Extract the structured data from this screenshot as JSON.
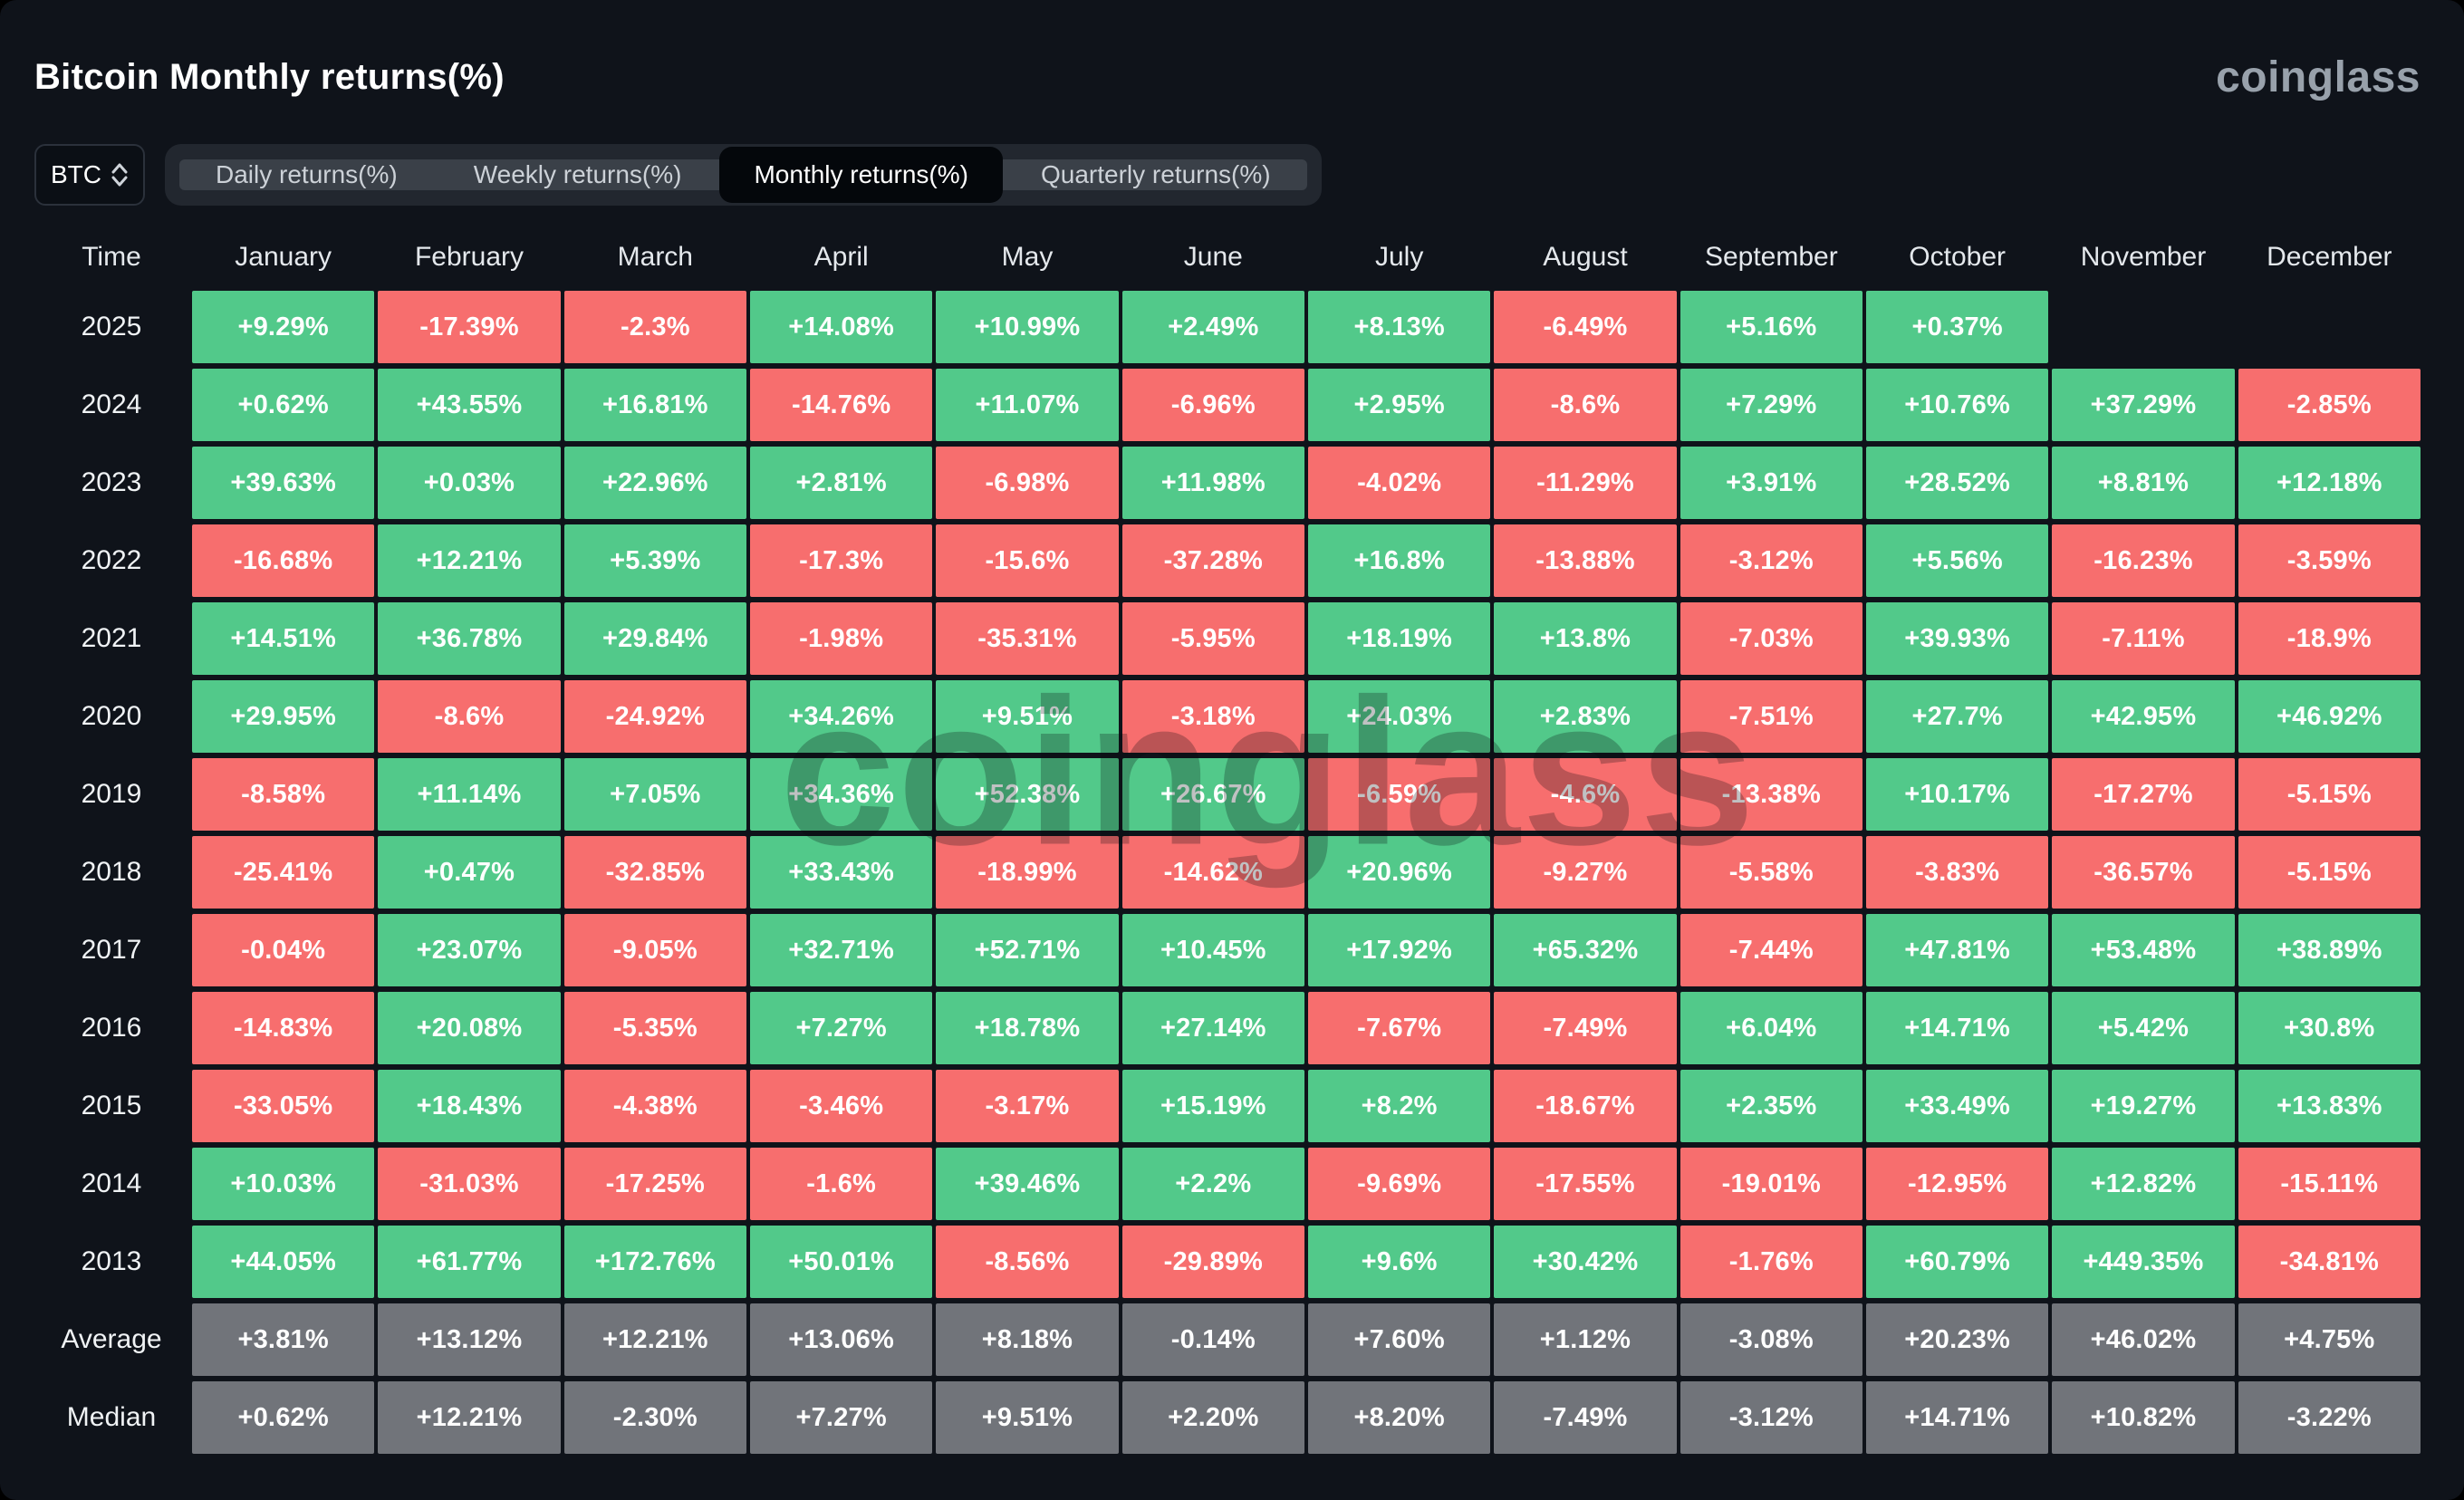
{
  "header": {
    "title": "Bitcoin Monthly returns(%)",
    "logo": "coinglass"
  },
  "controls": {
    "symbol": "BTC",
    "tabs": [
      {
        "label": "Daily returns(%)",
        "active": false
      },
      {
        "label": "Weekly returns(%)",
        "active": false
      },
      {
        "label": "Monthly returns(%)",
        "active": true
      },
      {
        "label": "Quarterly returns(%)",
        "active": false
      }
    ]
  },
  "watermark": "coinglass",
  "colors": {
    "background": "#0f131a",
    "positive": "#52c98a",
    "negative": "#f76e6e",
    "neutral": "#71747a"
  },
  "chart_data": {
    "type": "heatmap",
    "title": "Bitcoin Monthly returns(%)",
    "columns": [
      "Time",
      "January",
      "February",
      "March",
      "April",
      "May",
      "June",
      "July",
      "August",
      "September",
      "October",
      "November",
      "December"
    ],
    "rows": [
      {
        "label": "2025",
        "values": [
          "+9.29%",
          "-17.39%",
          "-2.3%",
          "+14.08%",
          "+10.99%",
          "+2.49%",
          "+8.13%",
          "-6.49%",
          "+5.16%",
          "+0.37%",
          "",
          ""
        ]
      },
      {
        "label": "2024",
        "values": [
          "+0.62%",
          "+43.55%",
          "+16.81%",
          "-14.76%",
          "+11.07%",
          "-6.96%",
          "+2.95%",
          "-8.6%",
          "+7.29%",
          "+10.76%",
          "+37.29%",
          "-2.85%"
        ]
      },
      {
        "label": "2023",
        "values": [
          "+39.63%",
          "+0.03%",
          "+22.96%",
          "+2.81%",
          "-6.98%",
          "+11.98%",
          "-4.02%",
          "-11.29%",
          "+3.91%",
          "+28.52%",
          "+8.81%",
          "+12.18%"
        ]
      },
      {
        "label": "2022",
        "values": [
          "-16.68%",
          "+12.21%",
          "+5.39%",
          "-17.3%",
          "-15.6%",
          "-37.28%",
          "+16.8%",
          "-13.88%",
          "-3.12%",
          "+5.56%",
          "-16.23%",
          "-3.59%"
        ]
      },
      {
        "label": "2021",
        "values": [
          "+14.51%",
          "+36.78%",
          "+29.84%",
          "-1.98%",
          "-35.31%",
          "-5.95%",
          "+18.19%",
          "+13.8%",
          "-7.03%",
          "+39.93%",
          "-7.11%",
          "-18.9%"
        ]
      },
      {
        "label": "2020",
        "values": [
          "+29.95%",
          "-8.6%",
          "-24.92%",
          "+34.26%",
          "+9.51%",
          "-3.18%",
          "+24.03%",
          "+2.83%",
          "-7.51%",
          "+27.7%",
          "+42.95%",
          "+46.92%"
        ]
      },
      {
        "label": "2019",
        "values": [
          "-8.58%",
          "+11.14%",
          "+7.05%",
          "+34.36%",
          "+52.38%",
          "+26.67%",
          "-6.59%",
          "-4.6%",
          "-13.38%",
          "+10.17%",
          "-17.27%",
          "-5.15%"
        ]
      },
      {
        "label": "2018",
        "values": [
          "-25.41%",
          "+0.47%",
          "-32.85%",
          "+33.43%",
          "-18.99%",
          "-14.62%",
          "+20.96%",
          "-9.27%",
          "-5.58%",
          "-3.83%",
          "-36.57%",
          "-5.15%"
        ]
      },
      {
        "label": "2017",
        "values": [
          "-0.04%",
          "+23.07%",
          "-9.05%",
          "+32.71%",
          "+52.71%",
          "+10.45%",
          "+17.92%",
          "+65.32%",
          "-7.44%",
          "+47.81%",
          "+53.48%",
          "+38.89%"
        ]
      },
      {
        "label": "2016",
        "values": [
          "-14.83%",
          "+20.08%",
          "-5.35%",
          "+7.27%",
          "+18.78%",
          "+27.14%",
          "-7.67%",
          "-7.49%",
          "+6.04%",
          "+14.71%",
          "+5.42%",
          "+30.8%"
        ]
      },
      {
        "label": "2015",
        "values": [
          "-33.05%",
          "+18.43%",
          "-4.38%",
          "-3.46%",
          "-3.17%",
          "+15.19%",
          "+8.2%",
          "-18.67%",
          "+2.35%",
          "+33.49%",
          "+19.27%",
          "+13.83%"
        ]
      },
      {
        "label": "2014",
        "values": [
          "+10.03%",
          "-31.03%",
          "-17.25%",
          "-1.6%",
          "+39.46%",
          "+2.2%",
          "-9.69%",
          "-17.55%",
          "-19.01%",
          "-12.95%",
          "+12.82%",
          "-15.11%"
        ]
      },
      {
        "label": "2013",
        "values": [
          "+44.05%",
          "+61.77%",
          "+172.76%",
          "+50.01%",
          "-8.56%",
          "-29.89%",
          "+9.6%",
          "+30.42%",
          "-1.76%",
          "+60.79%",
          "+449.35%",
          "-34.81%"
        ]
      },
      {
        "label": "Average",
        "summary": true,
        "values": [
          "+3.81%",
          "+13.12%",
          "+12.21%",
          "+13.06%",
          "+8.18%",
          "-0.14%",
          "+7.60%",
          "+1.12%",
          "-3.08%",
          "+20.23%",
          "+46.02%",
          "+4.75%"
        ]
      },
      {
        "label": "Median",
        "summary": true,
        "values": [
          "+0.62%",
          "+12.21%",
          "-2.30%",
          "+7.27%",
          "+9.51%",
          "+2.20%",
          "+8.20%",
          "-7.49%",
          "-3.12%",
          "+14.71%",
          "+10.82%",
          "-3.22%"
        ]
      }
    ]
  }
}
